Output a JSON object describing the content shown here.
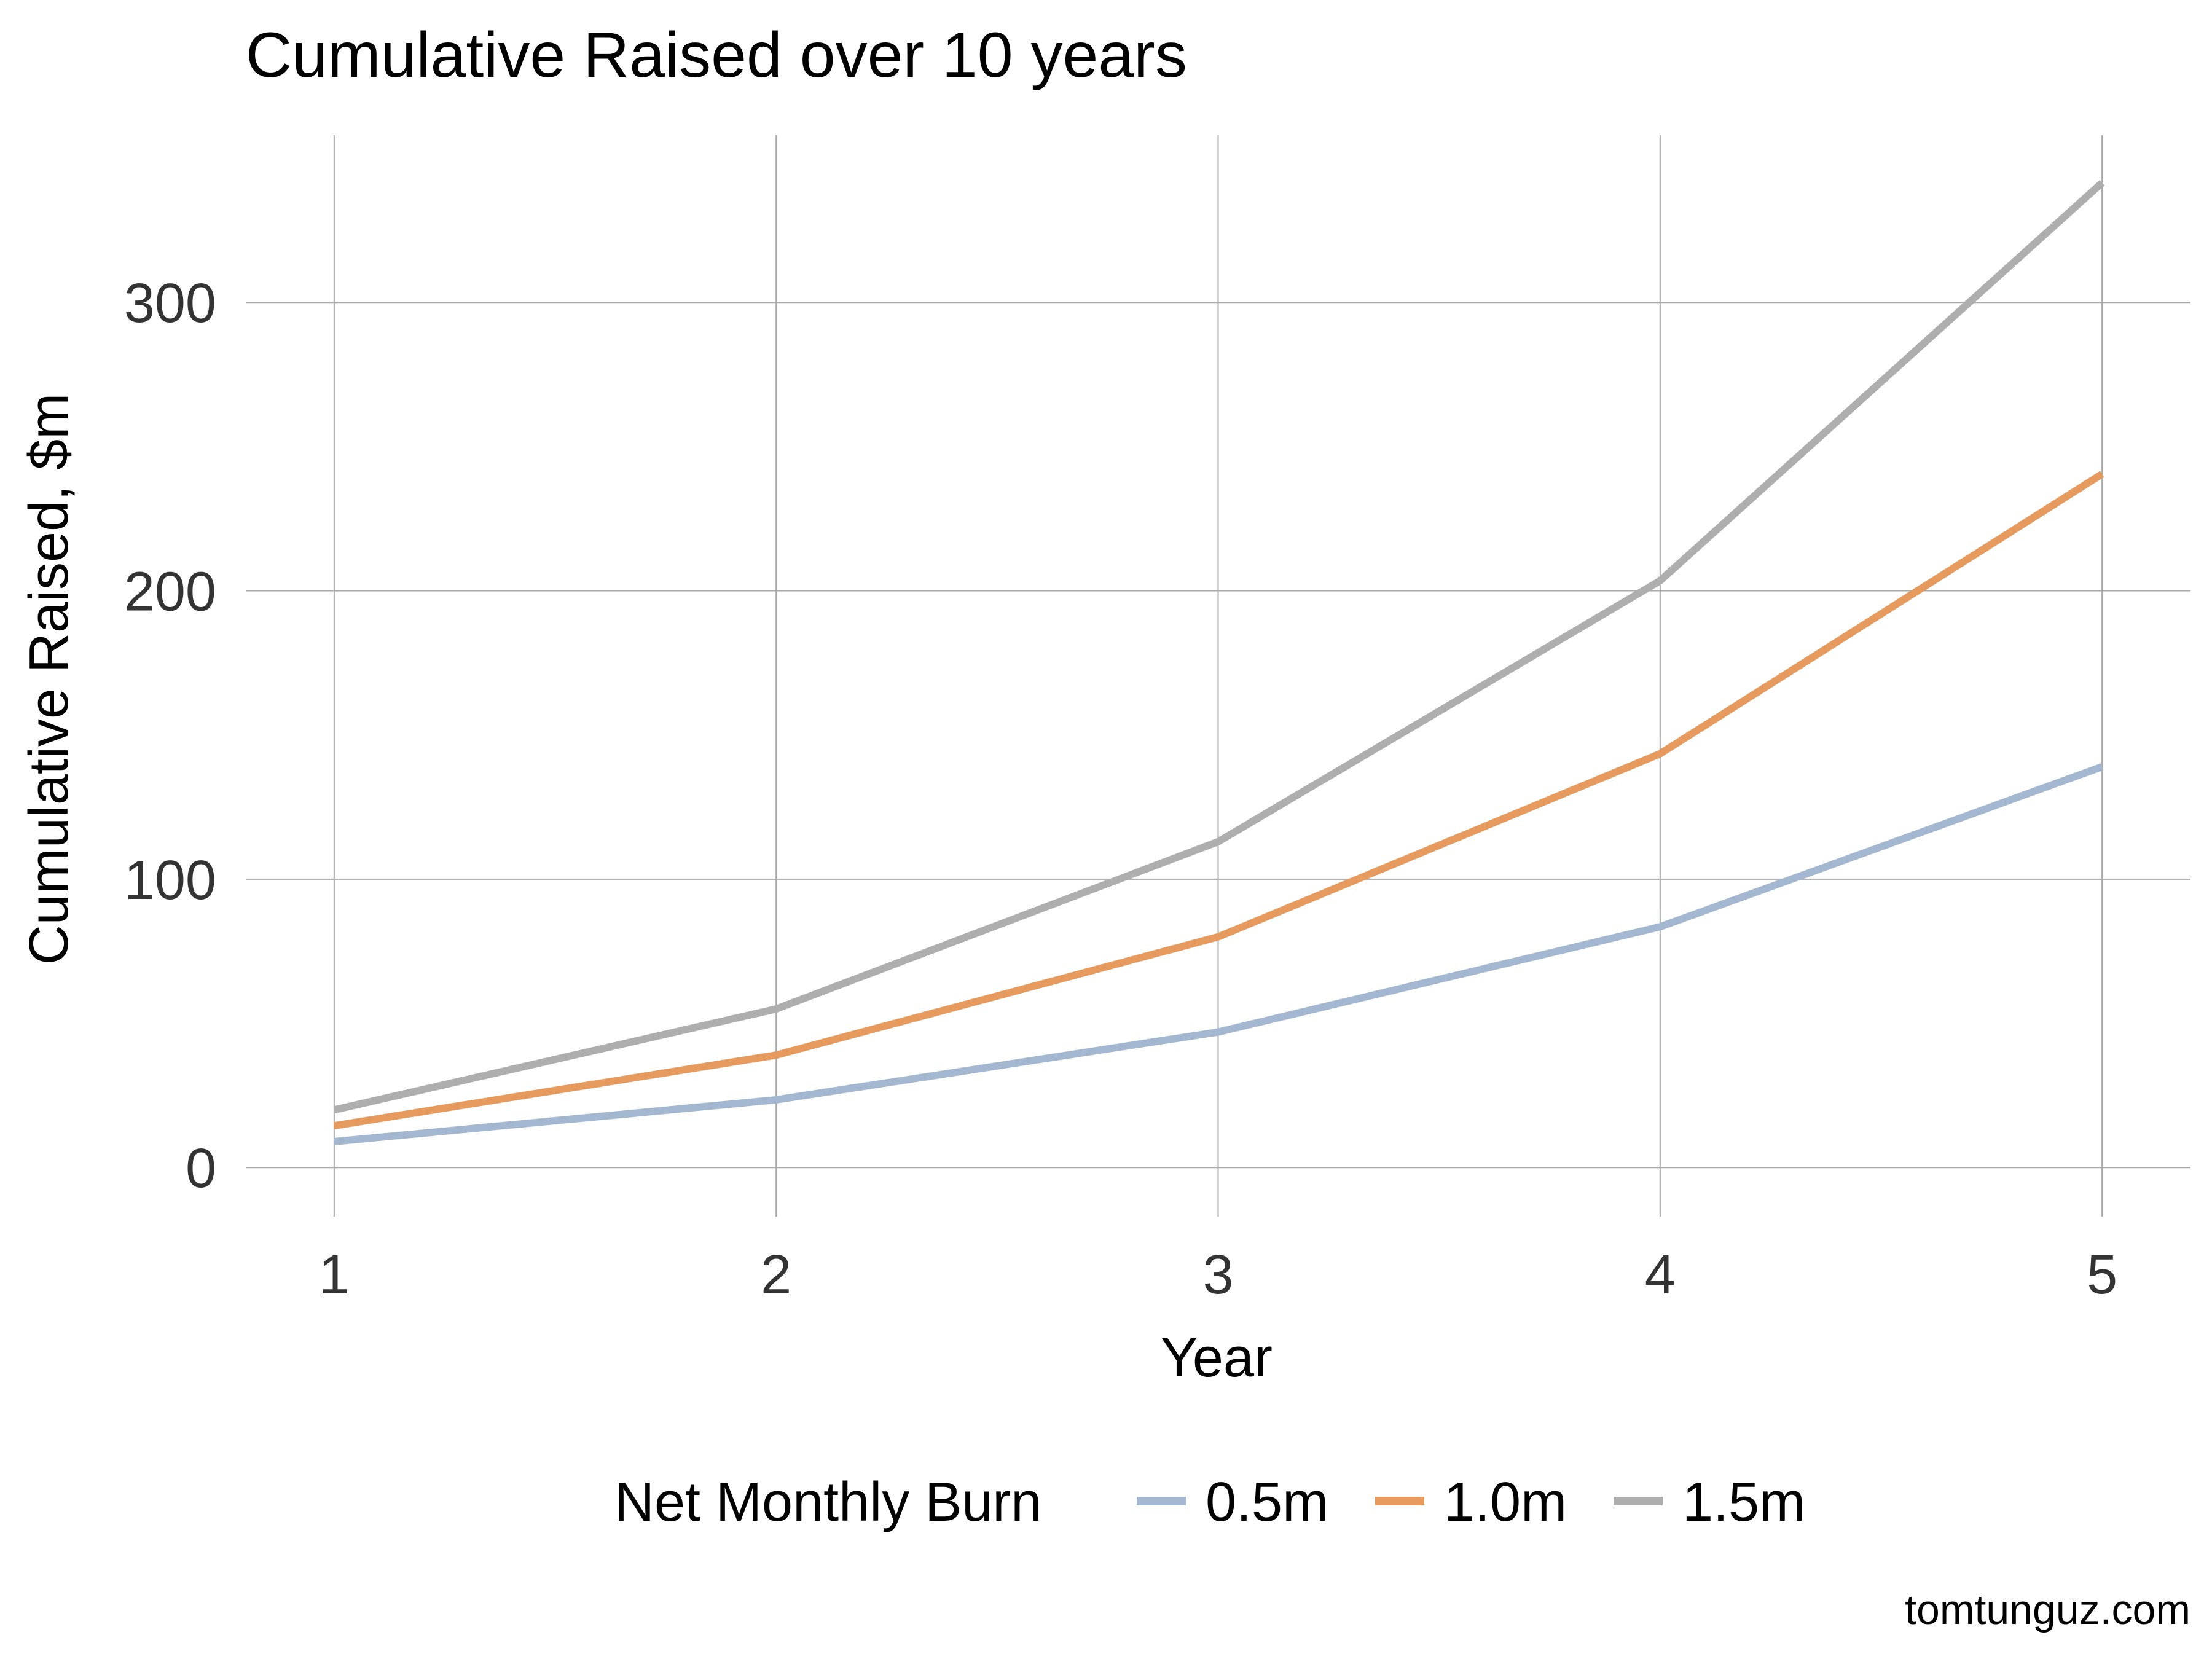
{
  "chart_data": {
    "type": "line",
    "title": "Cumulative Raised over 10 years",
    "xlabel": "Year",
    "ylabel": "Cumulative Raised, $m",
    "x": [
      1,
      2,
      3,
      4,
      5
    ],
    "x_ticks": [
      "1",
      "2",
      "3",
      "4",
      "5"
    ],
    "y_ticks": [
      "0",
      "100",
      "200",
      "300"
    ],
    "y_tick_values": [
      0,
      100,
      200,
      300
    ],
    "xlim": [
      0.8,
      5.2
    ],
    "ylim": [
      -17,
      358
    ],
    "grid": true,
    "legend": {
      "title": "Net Monthly Burn",
      "placement": "bottom"
    },
    "series": [
      {
        "name": "0.5m",
        "color": "#a3b7d1",
        "values": [
          9,
          23.5,
          47,
          83.5,
          139
        ]
      },
      {
        "name": "1.0m",
        "color": "#e69a5e",
        "values": [
          14.5,
          39,
          80,
          143.5,
          240.5
        ]
      },
      {
        "name": "1.5m",
        "color": "#aeaeae",
        "values": [
          20,
          55,
          113,
          203.5,
          341.5
        ]
      }
    ]
  },
  "credit": "tomtunguz.com"
}
